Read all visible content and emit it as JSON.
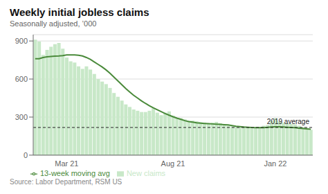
{
  "chart_data": {
    "type": "bar",
    "title": "Weekly initial jobless claims",
    "subtitle": "Seasonally adjusted, ’000",
    "source": "Source: Labor Department, RSM US",
    "categories": [
      null,
      null,
      null,
      null,
      null,
      null,
      null,
      null,
      "Mar 21",
      null,
      null,
      null,
      null,
      null,
      null,
      null,
      null,
      null,
      null,
      null,
      null,
      null,
      null,
      null,
      null,
      null,
      null,
      null,
      null,
      null,
      null,
      null,
      null,
      null,
      null,
      "Aug 21",
      null,
      null,
      null,
      null,
      null,
      null,
      null,
      null,
      null,
      null,
      null,
      null,
      null,
      null,
      null,
      null,
      null,
      null,
      null,
      null,
      null,
      null,
      null,
      null,
      null,
      "Jan 22",
      null,
      null,
      null,
      null,
      null,
      null,
      null,
      null,
      null
    ],
    "series": [
      {
        "name": "New claims",
        "type": "bar",
        "color": "#c8e8c8",
        "values": [
          910,
          895,
          790,
          830,
          855,
          875,
          885,
          840,
          770,
          740,
          730,
          700,
          680,
          700,
          675,
          640,
          600,
          580,
          560,
          530,
          490,
          460,
          430,
          400,
          380,
          360,
          350,
          340,
          340,
          350,
          370,
          335,
          315,
          335,
          345,
          312,
          292,
          292,
          282,
          272,
          272,
          267,
          262,
          257,
          252,
          257,
          262,
          252,
          242,
          232,
          227,
          222,
          222,
          217,
          217,
          212,
          217,
          222,
          232,
          237,
          272,
          292,
          267,
          257,
          252,
          247,
          242,
          232,
          222,
          215,
          200
        ]
      },
      {
        "name": "13-week moving avg",
        "type": "line",
        "color": "#4a8a3a",
        "values": [
          760,
          760,
          770,
          775,
          778,
          780,
          782,
          785,
          790,
          790,
          790,
          788,
          782,
          770,
          755,
          735,
          715,
          695,
          672,
          645,
          615,
          585,
          555,
          525,
          498,
          472,
          450,
          428,
          408,
          390,
          373,
          358,
          343,
          328,
          315,
          303,
          292,
          282,
          272,
          265,
          260,
          255,
          252,
          250,
          248,
          246,
          244,
          242,
          240,
          238,
          233,
          228,
          225,
          222,
          220,
          218,
          217,
          216,
          217,
          219,
          222,
          224,
          224,
          222,
          220,
          218,
          216,
          213,
          210,
          207,
          205
        ]
      }
    ],
    "annotations": [
      {
        "type": "hline",
        "y": 218,
        "text": "2019 average",
        "color": "#222222",
        "line_style": "dashed"
      }
    ],
    "ylim": [
      0,
      950
    ],
    "yticks": [
      0,
      300,
      600,
      900
    ],
    "grid": true,
    "legend": "bottom"
  }
}
